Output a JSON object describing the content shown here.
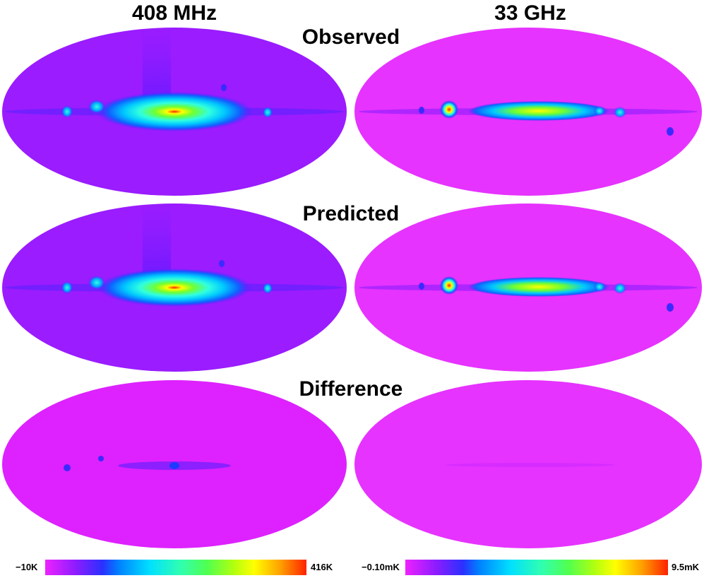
{
  "columns": [
    "408 MHz",
    "33 GHz"
  ],
  "rows": [
    "Observed",
    "Predicted",
    "Difference"
  ],
  "colorbars": [
    {
      "min_label": "−10K",
      "max_label": "416K"
    },
    {
      "min_label": "−0.10mK",
      "max_label": "9.5mK"
    }
  ],
  "colors": {
    "low_408": "#9a1cff",
    "low_33": "#e633ff",
    "diff": "#dd22ff",
    "spectrum": [
      "#ee22ff",
      "#8a1cff",
      "#3a2aff",
      "#1060ff",
      "#00c8ff",
      "#30ffe0",
      "#40ff90",
      "#70ff30",
      "#c8ff10",
      "#ffff00",
      "#ffb000",
      "#ff6000",
      "#ff2200"
    ]
  }
}
